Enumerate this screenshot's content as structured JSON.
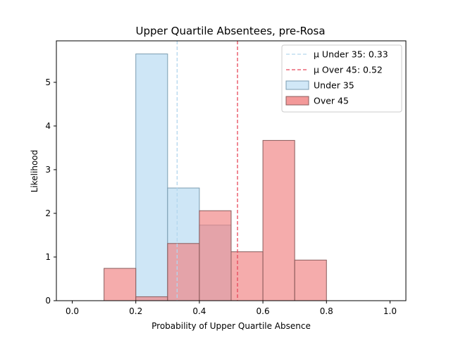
{
  "chart_data": {
    "type": "bar",
    "subtype": "histogram",
    "title": "Upper Quartile Absentees, pre-Rosa",
    "xlabel": "Probability of Upper Quartile Absence",
    "ylabel": "Likelihood",
    "xlim": [
      -0.05,
      1.05
    ],
    "ylim": [
      0,
      5.95
    ],
    "xticks": [
      0.0,
      0.2,
      0.4,
      0.6,
      0.8,
      1.0
    ],
    "xtick_labels": [
      "0.0",
      "0.2",
      "0.4",
      "0.6",
      "0.8",
      "1.0"
    ],
    "yticks": [
      0,
      1,
      2,
      3,
      4,
      5
    ],
    "ytick_labels": [
      "0",
      "1",
      "2",
      "3",
      "4",
      "5"
    ],
    "grid": false,
    "legend_position": "top-right",
    "bin_width": 0.1,
    "series": [
      {
        "name": "Under 35",
        "color": "#c6e2f5",
        "edge_color": "#7a9cb0",
        "alpha": 0.85,
        "bins": [
          {
            "x0": 0.2,
            "x1": 0.3,
            "value": 5.65
          },
          {
            "x0": 0.3,
            "x1": 0.4,
            "value": 2.58
          },
          {
            "x0": 0.4,
            "x1": 0.5,
            "value": 1.73
          }
        ]
      },
      {
        "name": "Over 45",
        "color": "#f08080",
        "edge_color": "#8a5c5c",
        "alpha": 0.65,
        "bins": [
          {
            "x0": 0.1,
            "x1": 0.2,
            "value": 0.74
          },
          {
            "x0": 0.2,
            "x1": 0.3,
            "value": 0.09
          },
          {
            "x0": 0.3,
            "x1": 0.4,
            "value": 1.31
          },
          {
            "x0": 0.4,
            "x1": 0.5,
            "value": 2.06
          },
          {
            "x0": 0.5,
            "x1": 0.6,
            "value": 1.12
          },
          {
            "x0": 0.6,
            "x1": 0.7,
            "value": 3.67
          },
          {
            "x0": 0.7,
            "x1": 0.8,
            "value": 0.93
          }
        ]
      }
    ],
    "mean_lines": [
      {
        "label": "μ Under 35: 0.33",
        "value": 0.33,
        "color": "#b3d7ee",
        "style": "dashed"
      },
      {
        "label": "μ Over 45: 0.52",
        "value": 0.52,
        "color": "#e8485a",
        "style": "dashed"
      }
    ],
    "legend": [
      {
        "label": "μ Under 35: 0.33",
        "kind": "line",
        "color": "#b3d7ee"
      },
      {
        "label": "μ Over 45: 0.52",
        "kind": "line",
        "color": "#e8485a"
      },
      {
        "label": "Under 35",
        "kind": "patch",
        "color": "#c6e2f5",
        "edge_color": "#7a9cb0"
      },
      {
        "label": "Over 45",
        "kind": "patch",
        "color": "#f08080",
        "edge_color": "#8a5c5c"
      }
    ]
  }
}
